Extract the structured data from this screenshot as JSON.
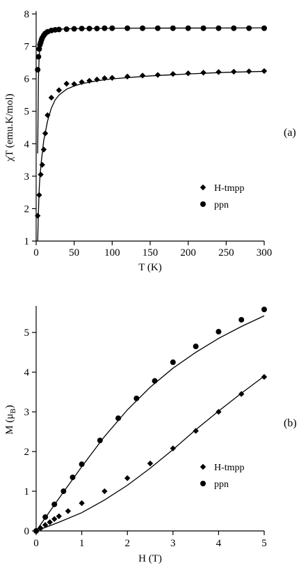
{
  "chart_data": [
    {
      "type": "scatter",
      "panel_label": "(a)",
      "xlabel": "T (K)",
      "ylabel": "χT (emu.K/mol)",
      "xlim": [
        0,
        300
      ],
      "ylim": [
        1,
        8
      ],
      "xticks": [
        0,
        50,
        100,
        150,
        200,
        250,
        300
      ],
      "yticks": [
        1,
        2,
        3,
        4,
        5,
        6,
        7,
        8
      ],
      "legend_position": "bottom-right",
      "series": [
        {
          "name": "H-tmpp",
          "marker": "diamond",
          "x": [
            2,
            4,
            6,
            8,
            10,
            12,
            15,
            20,
            30,
            40,
            50,
            60,
            70,
            80,
            90,
            100,
            120,
            140,
            160,
            180,
            200,
            220,
            240,
            260,
            280,
            300
          ],
          "y": [
            1.78,
            2.42,
            3.05,
            3.35,
            3.82,
            4.32,
            4.88,
            5.42,
            5.65,
            5.85,
            5.84,
            5.9,
            5.94,
            5.98,
            6.02,
            6.03,
            6.07,
            6.1,
            6.12,
            6.15,
            6.17,
            6.19,
            6.21,
            6.22,
            6.23,
            6.24
          ]
        },
        {
          "name": "ppn",
          "marker": "circle",
          "x": [
            2,
            3,
            4,
            5,
            6,
            7,
            8,
            10,
            12,
            15,
            20,
            25,
            30,
            40,
            50,
            60,
            70,
            80,
            90,
            100,
            120,
            140,
            160,
            180,
            200,
            220,
            240,
            260,
            280,
            300
          ],
          "y": [
            6.28,
            6.68,
            6.92,
            7.05,
            7.12,
            7.2,
            7.26,
            7.34,
            7.4,
            7.45,
            7.49,
            7.51,
            7.52,
            7.53,
            7.54,
            7.55,
            7.55,
            7.55,
            7.56,
            7.56,
            7.56,
            7.56,
            7.56,
            7.56,
            7.56,
            7.56,
            7.56,
            7.56,
            7.56,
            7.56
          ]
        }
      ],
      "fits": [
        {
          "x": [
            2,
            3,
            4,
            5,
            7,
            10,
            15,
            20,
            25,
            30,
            40,
            50,
            60,
            80,
            100,
            150,
            200,
            250,
            300
          ],
          "y": [
            1.0,
            1.9,
            2.6,
            3.0,
            3.5,
            4.1,
            4.7,
            5.1,
            5.35,
            5.5,
            5.68,
            5.78,
            5.85,
            5.94,
            6.0,
            6.09,
            6.15,
            6.2,
            6.23
          ]
        },
        {
          "x": [
            2,
            3,
            4,
            5,
            6,
            8,
            10,
            15,
            20,
            30,
            50,
            100,
            300
          ],
          "y": [
            3.7,
            6.0,
            6.7,
            7.0,
            7.15,
            7.3,
            7.38,
            7.47,
            7.51,
            7.53,
            7.55,
            7.56,
            7.57
          ]
        }
      ]
    },
    {
      "type": "scatter",
      "panel_label": "(b)",
      "xlabel": "H (T)",
      "ylabel_main": "M (μ",
      "ylabel_sub": "B",
      "ylabel_end": ")",
      "xlim": [
        0,
        5
      ],
      "ylim": [
        0,
        5.6
      ],
      "xticks": [
        0,
        1,
        2,
        3,
        4,
        5
      ],
      "yticks": [
        0,
        1,
        2,
        3,
        4,
        5
      ],
      "legend_position": "bottom-right",
      "series": [
        {
          "name": "H-tmpp",
          "marker": "diamond",
          "x": [
            0.1,
            0.2,
            0.3,
            0.4,
            0.5,
            0.7,
            1.0,
            1.5,
            2.0,
            2.5,
            3.0,
            3.5,
            4.0,
            4.5,
            5.0
          ],
          "y": [
            0.07,
            0.15,
            0.22,
            0.3,
            0.37,
            0.5,
            0.7,
            1.0,
            1.33,
            1.7,
            2.08,
            2.52,
            3.0,
            3.45,
            3.88
          ]
        },
        {
          "name": "ppn",
          "marker": "circle",
          "x": [
            0,
            0.2,
            0.4,
            0.6,
            0.8,
            1.0,
            1.4,
            1.8,
            2.2,
            2.6,
            3.0,
            3.5,
            4.0,
            4.5,
            5.0
          ],
          "y": [
            0,
            0.35,
            0.67,
            1.0,
            1.35,
            1.68,
            2.28,
            2.84,
            3.34,
            3.78,
            4.25,
            4.65,
            5.02,
            5.32,
            5.58
          ]
        }
      ],
      "fits": [
        {
          "x": [
            0,
            0.5,
            1.0,
            1.5,
            2.0,
            2.5,
            3.0,
            3.5,
            4.0,
            4.5,
            5.0
          ],
          "y": [
            0,
            0.22,
            0.46,
            0.78,
            1.15,
            1.58,
            2.05,
            2.55,
            3.02,
            3.47,
            3.9
          ]
        },
        {
          "x": [
            0,
            0.5,
            1.0,
            1.5,
            2.0,
            2.5,
            3.0,
            3.5,
            4.0,
            4.5,
            5.0
          ],
          "y": [
            0,
            0.82,
            1.62,
            2.38,
            3.05,
            3.62,
            4.1,
            4.5,
            4.85,
            5.15,
            5.42
          ]
        }
      ]
    }
  ]
}
